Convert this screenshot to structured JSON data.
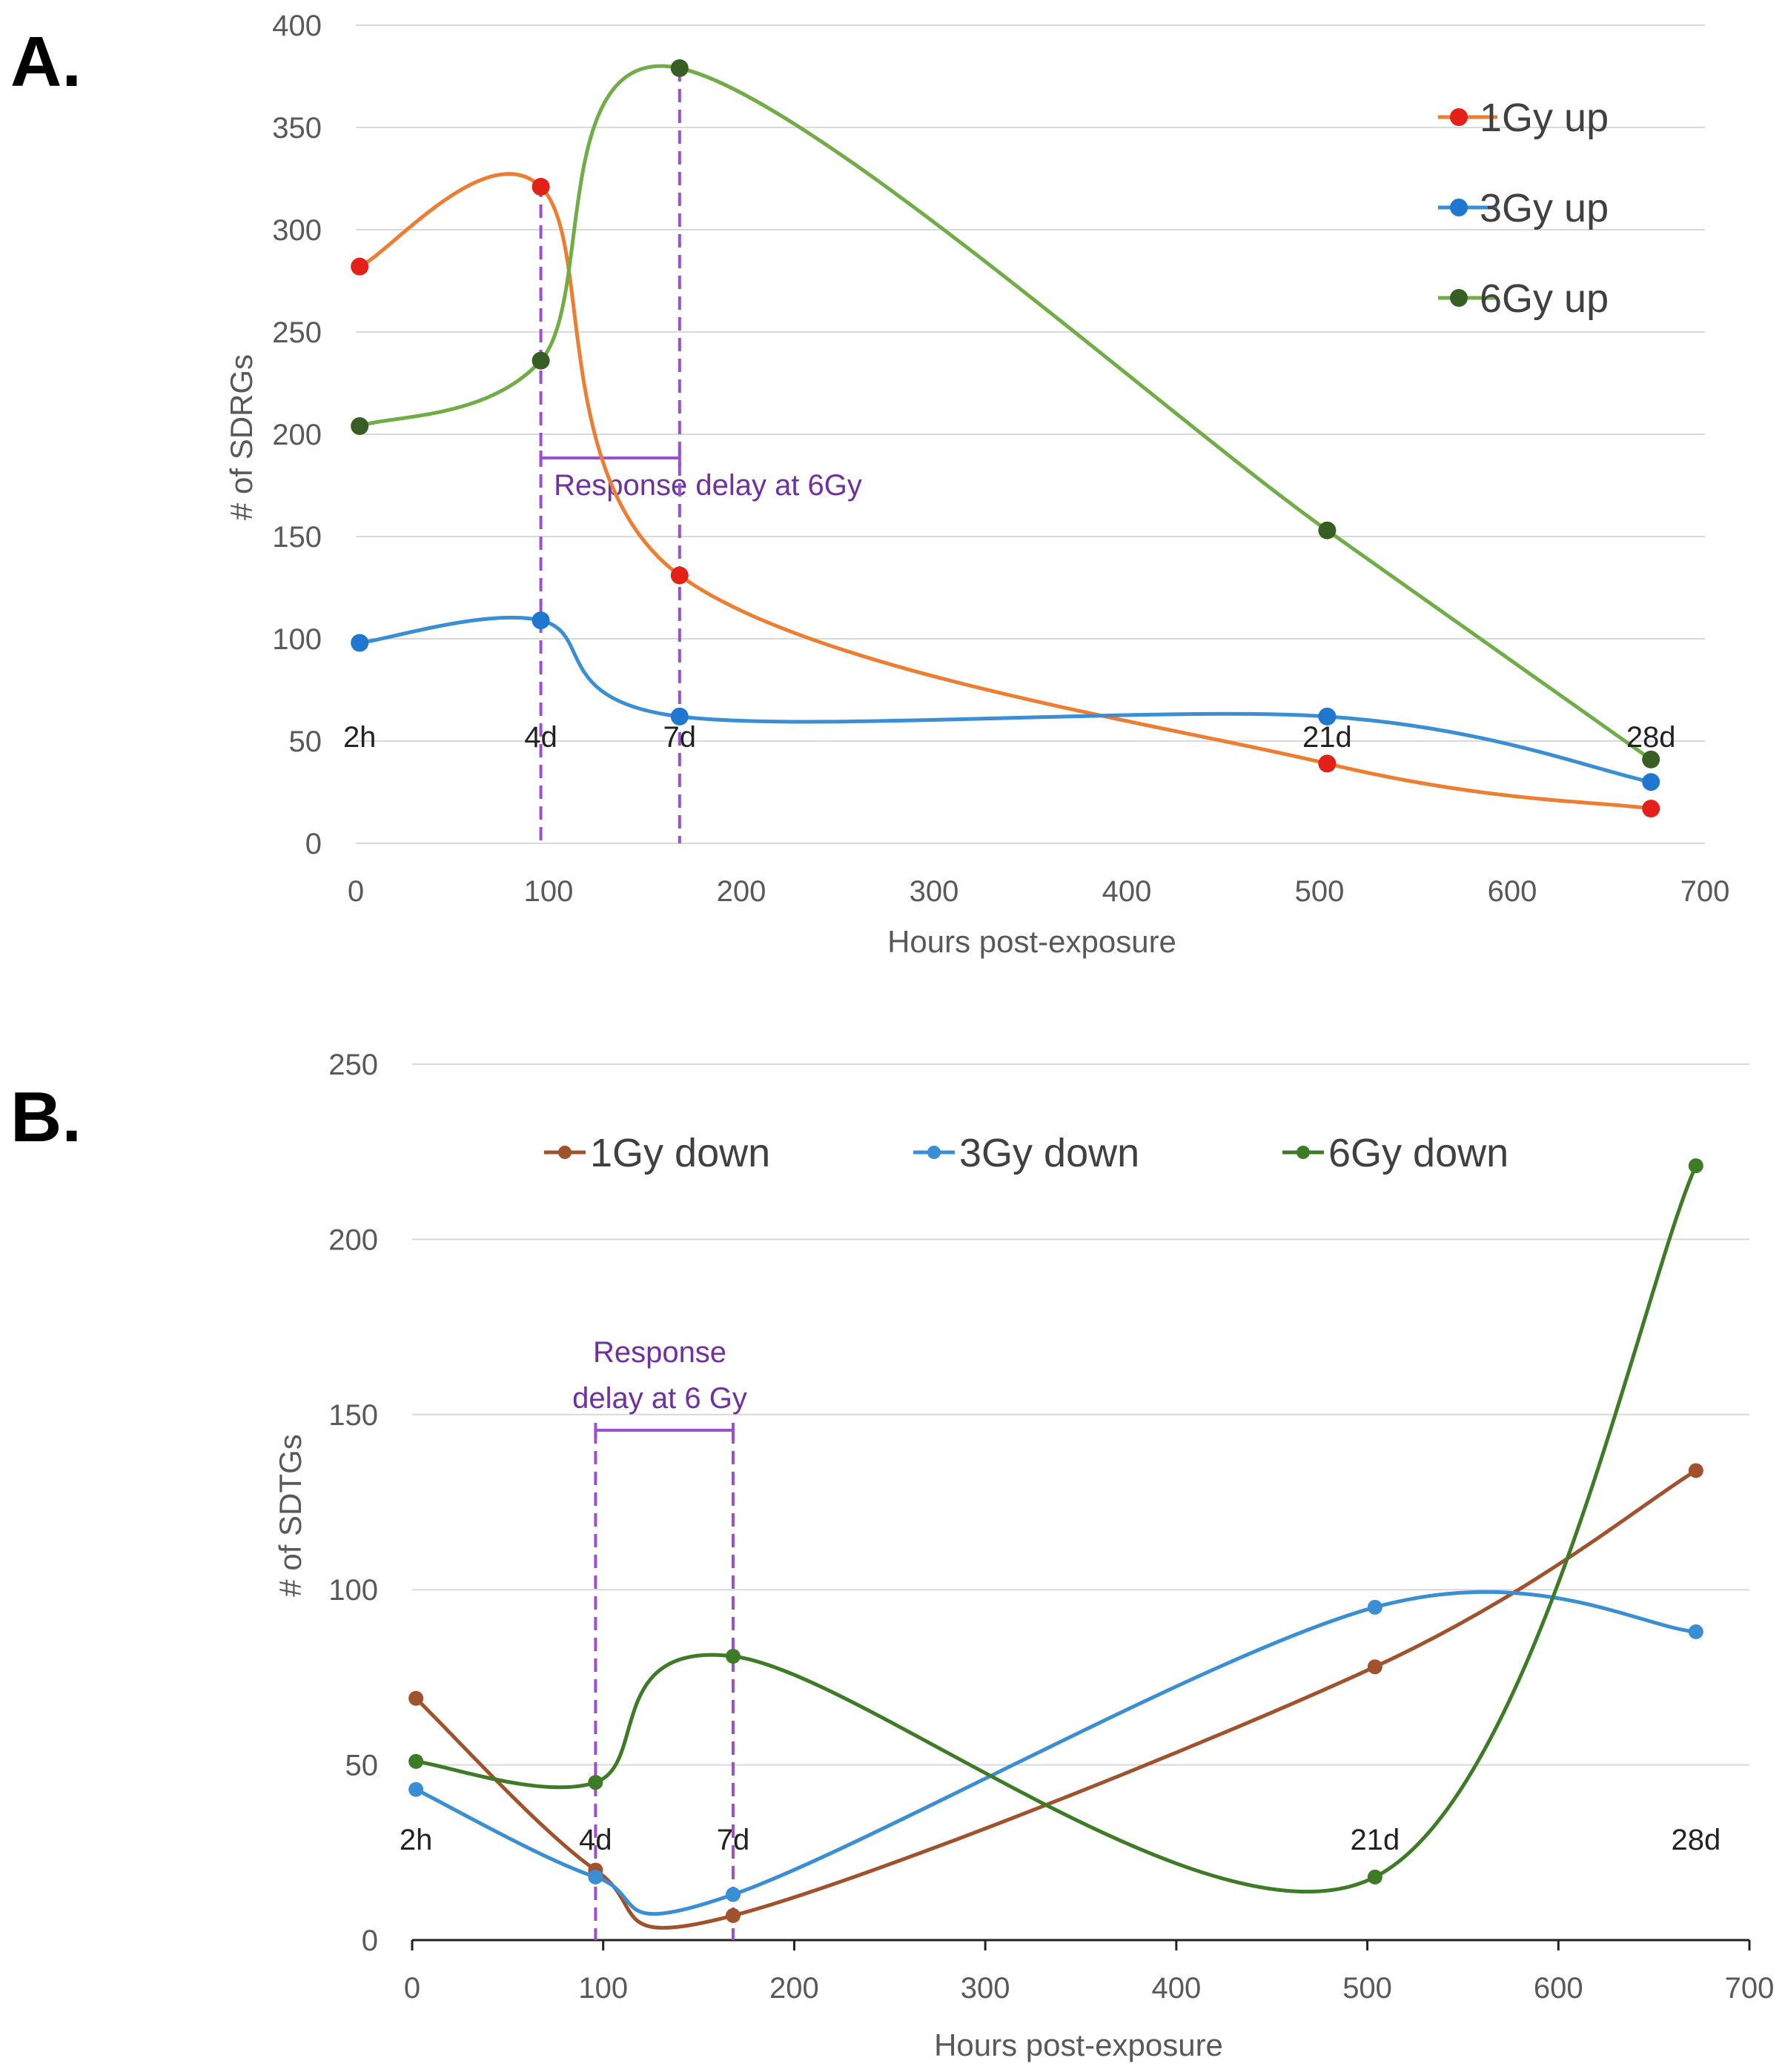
{
  "chart_data": [
    {
      "panel": "A.",
      "type": "line",
      "xlabel": "Hours post-exposure",
      "ylabel": "# of SDRGs",
      "xlim": [
        0,
        700
      ],
      "ylim": [
        0,
        400
      ],
      "x_ticks": [
        0,
        100,
        200,
        300,
        400,
        500,
        600,
        700
      ],
      "y_ticks": [
        0,
        50,
        100,
        150,
        200,
        250,
        300,
        350,
        400
      ],
      "grid": true,
      "legend_position": "top-right",
      "x": [
        2,
        96,
        168,
        504,
        672
      ],
      "time_labels": [
        "2h",
        "4d",
        "7d",
        "21d",
        "28d"
      ],
      "series": [
        {
          "name": "1Gy up",
          "color": "#ed7d31",
          "marker_color": "#e32118",
          "values": [
            282,
            321,
            131,
            39,
            17
          ]
        },
        {
          "name": "3Gy up",
          "color": "#3a8fd4",
          "marker_color": "#1f77d0",
          "values": [
            98,
            109,
            62,
            62,
            30
          ]
        },
        {
          "name": "6Gy up",
          "color": "#70ad47",
          "marker_color": "#375f23",
          "values": [
            204,
            236,
            379,
            153,
            41
          ]
        }
      ],
      "annotation": {
        "text": "Response delay at 6Gy",
        "x_start": 96,
        "x_end": 168
      }
    },
    {
      "panel": "B.",
      "type": "line",
      "xlabel": "Hours post-exposure",
      "ylabel": "# of SDTGs",
      "xlim": [
        0,
        700
      ],
      "ylim": [
        0,
        250
      ],
      "x_ticks": [
        0,
        100,
        200,
        300,
        400,
        500,
        600,
        700
      ],
      "y_ticks": [
        0,
        50,
        100,
        150,
        200,
        250
      ],
      "grid": true,
      "legend_position": "top",
      "x": [
        2,
        96,
        168,
        504,
        672
      ],
      "time_labels": [
        "2h",
        "4d",
        "7d",
        "21d",
        "28d"
      ],
      "series": [
        {
          "name": "1Gy down",
          "color": "#a0522d",
          "marker_color": "#a0522d",
          "values": [
            69,
            20,
            7,
            78,
            134
          ]
        },
        {
          "name": "3Gy down",
          "color": "#3a8fd4",
          "marker_color": "#3a8fd4",
          "values": [
            43,
            18,
            13,
            95,
            88
          ]
        },
        {
          "name": "6Gy down",
          "color": "#3e7b27",
          "marker_color": "#3e7b27",
          "values": [
            51,
            45,
            81,
            18,
            221
          ]
        }
      ],
      "annotation": {
        "text_line1": "Response",
        "text_line2": "delay at 6 Gy",
        "x_start": 96,
        "x_end": 168
      }
    }
  ]
}
